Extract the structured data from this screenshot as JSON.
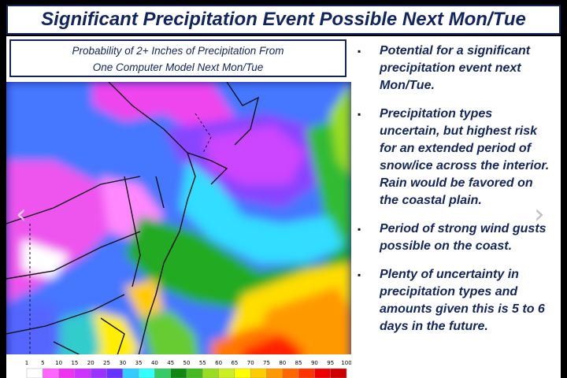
{
  "title": "Significant Precipitation Event Possible Next Mon/Tue",
  "map_caption": {
    "line1": "Probability of 2+ Inches of Precipitation From",
    "line2": "One Computer Model Next Mon/Tue"
  },
  "bullets": [
    {
      "marker": "▪",
      "lines": [
        "Potential for a significant",
        "precipitation event next",
        "Mon/Tue."
      ]
    },
    {
      "marker": "▪",
      "lines": [
        "Precipitation types",
        "uncertain, but highest risk",
        "for an extended period of",
        "snow/ice across the interior.",
        "Rain would be favored on",
        "the coastal plain."
      ]
    },
    {
      "marker": "▪",
      "lines": [
        "Period of strong wind gusts",
        "possible on the coast."
      ]
    },
    {
      "marker": "▪",
      "lines": [
        "Plenty of uncertainty in",
        "precipitation types and",
        "amounts given this is 5 to 6",
        "days in the future."
      ]
    }
  ],
  "legend": {
    "labels": [
      "1",
      "5",
      "10",
      "15",
      "20",
      "25",
      "30",
      "35",
      "40",
      "45",
      "50",
      "55",
      "60",
      "65",
      "70",
      "75",
      "80",
      "85",
      "90",
      "95",
      "100"
    ],
    "colors": [
      "#ffffff",
      "#ff66ff",
      "#ee33ee",
      "#cc33ff",
      "#9933ff",
      "#6633ff",
      "#33ccff",
      "#33ffff",
      "#33cc66",
      "#118811",
      "#44bb22",
      "#99dd22",
      "#ccee22",
      "#ffff00",
      "#ffcc00",
      "#ff9900",
      "#ff6600",
      "#ff3300",
      "#ee0000",
      "#cc0000"
    ]
  },
  "nav": {
    "prev": "‹",
    "next": "›"
  },
  "colors": {
    "title_text": "#12255e",
    "frame": "#12255e"
  }
}
